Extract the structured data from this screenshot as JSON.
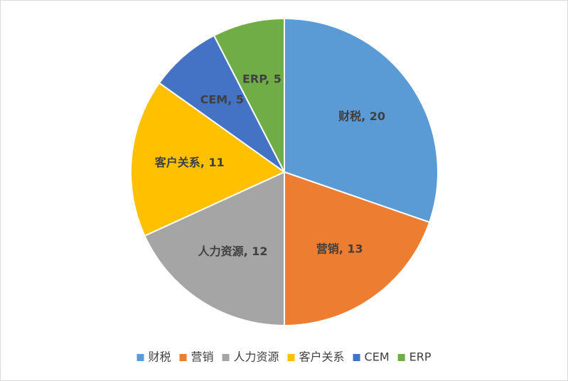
{
  "chart_data": {
    "type": "pie",
    "categories": [
      "财税",
      "营销",
      "人力资源",
      "客户关系",
      "CEM",
      "ERP"
    ],
    "values": [
      20,
      13,
      12,
      11,
      5,
      5
    ],
    "value_labels": [
      "财税, 20",
      "营销, 13",
      "人力资源, 12",
      "客户关系, 11",
      "CEM, 5",
      "ERP, 5"
    ],
    "colors": [
      "#5b9bd5",
      "#ed7d31",
      "#a5a5a5",
      "#ffc000",
      "#4472c4",
      "#70ad47"
    ],
    "legend": "bottom"
  }
}
